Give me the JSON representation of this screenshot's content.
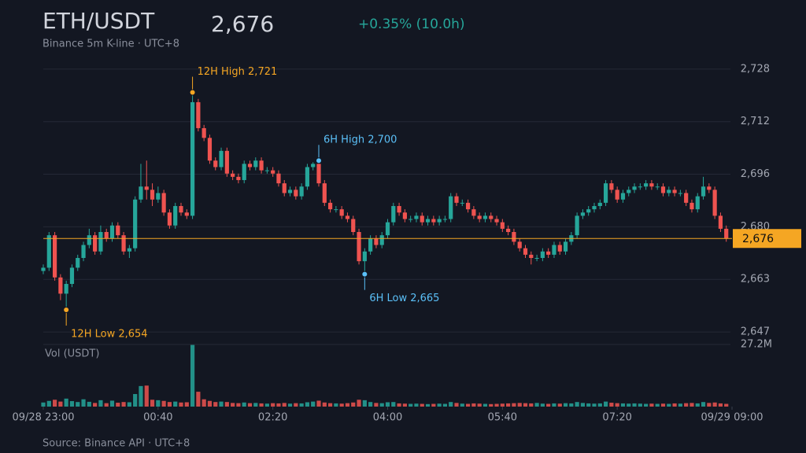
{
  "chart_data": {
    "type": "candlestick",
    "title": "ETH/USDT",
    "subtitle": "Binance 5m K-line · UTC+8",
    "change": "+0.35% (10.0h)",
    "volume_label": "Vol (USDT)",
    "source": "Source: Binance API · UTC+8",
    "last_price": {
      "value": 2676,
      "label": "2,676"
    },
    "annotations": {
      "high_12h": "12H High 2,721",
      "low_12h": "12H Low 2,654",
      "high_6h": "6H High 2,700",
      "low_6h": "6H Low 2,665"
    },
    "up_color": "#26a69a",
    "down_color": "#ef5350",
    "grid": true,
    "xlim": [
      0,
      120
    ],
    "xticks": [
      {
        "value": 0,
        "label": "09/28 23:00"
      },
      {
        "value": 20,
        "label": "00:40"
      },
      {
        "value": 40,
        "label": "02:20"
      },
      {
        "value": 60,
        "label": "04:00"
      },
      {
        "value": 80,
        "label": "05:40"
      },
      {
        "value": 100,
        "label": "07:20"
      },
      {
        "value": 120,
        "label": "09/29 09:00"
      }
    ],
    "ylim": [
      2644.8,
      2730.1
    ],
    "yticks": [
      {
        "value": 2647.2,
        "label": "2,647"
      },
      {
        "value": 2663.4,
        "label": "2,663"
      },
      {
        "value": 2679.6,
        "label": "2,680"
      },
      {
        "value": 2695.8,
        "label": "2,696"
      },
      {
        "value": 2712.0,
        "label": "2,712"
      },
      {
        "value": 2728.2,
        "label": "2,728"
      }
    ],
    "volume_ylim": [
      0,
      27.2
    ],
    "volume_yticks": [
      {
        "value": 27.2,
        "label": "27.2M"
      }
    ],
    "open": [
      2666,
      2667,
      2677,
      2664,
      2659,
      2662,
      2667,
      2670,
      2674,
      2677,
      2672,
      2678,
      2676,
      2680,
      2677,
      2672,
      2673,
      2688,
      2692,
      2691,
      2688,
      2690,
      2684,
      2680,
      2686,
      2684,
      2683,
      2718,
      2710,
      2707,
      2700,
      2698,
      2703,
      2696,
      2695,
      2694,
      2699,
      2698,
      2700,
      2697,
      2697,
      2696,
      2693,
      2690,
      2691,
      2689,
      2692,
      2698,
      2699,
      2693,
      2687,
      2685,
      2685,
      2683,
      2682,
      2678,
      2669,
      2672,
      2676,
      2674,
      2677,
      2681,
      2686,
      2684,
      2682,
      2682,
      2683,
      2681,
      2682,
      2681,
      2682,
      2682,
      2689,
      2687,
      2687,
      2685,
      2683,
      2682,
      2683,
      2682,
      2681,
      2679,
      2678,
      2675,
      2673,
      2671,
      2670,
      2670,
      2672,
      2671,
      2674,
      2672,
      2675,
      2677,
      2683,
      2684,
      2685,
      2686,
      2687,
      2693,
      2691,
      2688,
      2690,
      2691,
      2692,
      2692,
      2693,
      2692,
      2692,
      2690,
      2691,
      2690,
      2690,
      2687,
      2685,
      2689,
      2692,
      2691,
      2683,
      2679
    ],
    "high": [
      2668,
      2678,
      2678,
      2665,
      2663,
      2668,
      2671,
      2675,
      2679,
      2678,
      2680,
      2679,
      2681,
      2681,
      2678,
      2674,
      2689,
      2699,
      2700,
      2693,
      2692,
      2691,
      2685,
      2687,
      2687,
      2685,
      2721,
      2719,
      2711,
      2708,
      2701,
      2704,
      2704,
      2697,
      2696,
      2700,
      2700,
      2701,
      2701,
      2698,
      2698,
      2697,
      2694,
      2692,
      2692,
      2693,
      2699,
      2699.5,
      2700,
      2694,
      2688,
      2686,
      2686,
      2684,
      2683,
      2679,
      2673,
      2677,
      2677,
      2678,
      2682,
      2687,
      2687,
      2685,
      2683,
      2684,
      2684,
      2683,
      2683,
      2683,
      2683,
      2690,
      2690,
      2688,
      2688,
      2686,
      2684,
      2684,
      2684,
      2683,
      2682,
      2680,
      2679,
      2676,
      2674,
      2672,
      2671,
      2673,
      2673,
      2675,
      2675,
      2676,
      2678,
      2684,
      2685,
      2686,
      2687,
      2688,
      2694,
      2694,
      2692,
      2691,
      2692,
      2693,
      2693,
      2694,
      2694,
      2693,
      2693,
      2692,
      2692,
      2691,
      2691,
      2688,
      2690,
      2695,
      2693,
      2692,
      2684,
      2680
    ],
    "low": [
      2665,
      2666,
      2663,
      2657,
      2654,
      2661,
      2666,
      2669,
      2673,
      2671,
      2671,
      2675,
      2675,
      2676,
      2671,
      2670,
      2672,
      2687,
      2688,
      2686,
      2687,
      2683,
      2679,
      2679,
      2683,
      2682,
      2682,
      2709,
      2706,
      2699,
      2697,
      2697,
      2695,
      2694,
      2693,
      2693,
      2697,
      2697,
      2696,
      2696,
      2695,
      2692,
      2689,
      2689,
      2688,
      2688,
      2691,
      2697,
      2692,
      2686,
      2684,
      2684,
      2682,
      2681,
      2677,
      2668,
      2665,
      2671,
      2673,
      2673,
      2676,
      2680,
      2683,
      2681,
      2681,
      2681,
      2680,
      2680,
      2680,
      2680,
      2681,
      2681,
      2686,
      2686,
      2684,
      2682,
      2681,
      2681,
      2681,
      2680,
      2678,
      2677,
      2674,
      2672,
      2670,
      2668,
      2669,
      2669,
      2670,
      2670,
      2671,
      2671,
      2674,
      2676,
      2682,
      2683,
      2684,
      2685,
      2686,
      2690,
      2687,
      2687,
      2689,
      2690,
      2691,
      2691,
      2691,
      2691,
      2689,
      2689,
      2689,
      2689,
      2686,
      2684,
      2684,
      2688,
      2690,
      2682,
      2678,
      2675
    ],
    "close": [
      2667,
      2677,
      2664,
      2659,
      2662,
      2667,
      2670,
      2674,
      2677,
      2672,
      2678,
      2676,
      2680,
      2677,
      2672,
      2673,
      2688,
      2692,
      2691,
      2688,
      2690,
      2684,
      2680,
      2686,
      2684,
      2683,
      2718,
      2710,
      2707,
      2700,
      2698,
      2703,
      2696,
      2695,
      2694,
      2699,
      2698,
      2700,
      2697,
      2697,
      2696,
      2693,
      2690,
      2691,
      2689,
      2692,
      2698,
      2699,
      2693,
      2687,
      2685,
      2685,
      2683,
      2682,
      2678,
      2669,
      2672,
      2676,
      2674,
      2677,
      2681,
      2686,
      2684,
      2682,
      2682,
      2683,
      2681,
      2682,
      2681,
      2682,
      2682,
      2689,
      2687,
      2687,
      2685,
      2683,
      2682,
      2683,
      2682,
      2681,
      2679,
      2678,
      2675,
      2673,
      2671,
      2670,
      2670,
      2672,
      2671,
      2674,
      2672,
      2675,
      2677,
      2683,
      2684,
      2685,
      2686,
      2687,
      2693,
      2691,
      2688,
      2690,
      2691,
      2692,
      2692,
      2693,
      2692,
      2692,
      2690,
      2691,
      2690,
      2690,
      2687,
      2685,
      2689,
      2692,
      2691,
      2683,
      2679,
      2676
    ],
    "volume": [
      1.8,
      2.5,
      3.0,
      2.2,
      3.5,
      2.4,
      2.0,
      3.2,
      2.1,
      1.6,
      2.8,
      1.5,
      2.6,
      1.7,
      2.0,
      1.9,
      5.5,
      9.0,
      9.2,
      3.0,
      2.8,
      2.5,
      2.0,
      2.2,
      1.8,
      1.9,
      27.0,
      6.5,
      3.2,
      2.5,
      2.0,
      2.2,
      2.0,
      1.6,
      1.5,
      1.8,
      1.5,
      1.6,
      1.4,
      1.3,
      1.5,
      1.4,
      1.6,
      1.3,
      1.5,
      1.4,
      1.9,
      2.2,
      2.6,
      1.8,
      1.5,
      1.4,
      1.3,
      1.5,
      1.8,
      3.0,
      2.8,
      2.0,
      1.6,
      1.5,
      1.9,
      2.0,
      1.4,
      1.3,
      1.2,
      1.3,
      1.2,
      1.1,
      1.2,
      1.3,
      1.2,
      2.0,
      1.6,
      1.3,
      1.2,
      1.4,
      1.3,
      1.2,
      1.1,
      1.2,
      1.3,
      1.4,
      1.5,
      1.6,
      1.5,
      1.4,
      1.6,
      1.3,
      1.2,
      1.4,
      1.3,
      1.5,
      1.4,
      2.0,
      1.6,
      1.4,
      1.3,
      1.4,
      2.2,
      1.7,
      1.5,
      1.4,
      1.3,
      1.4,
      1.3,
      1.2,
      1.3,
      1.2,
      1.3,
      1.2,
      1.4,
      1.3,
      1.5,
      1.6,
      1.4,
      2.0,
      1.6,
      1.8,
      1.4,
      1.2
    ]
  }
}
